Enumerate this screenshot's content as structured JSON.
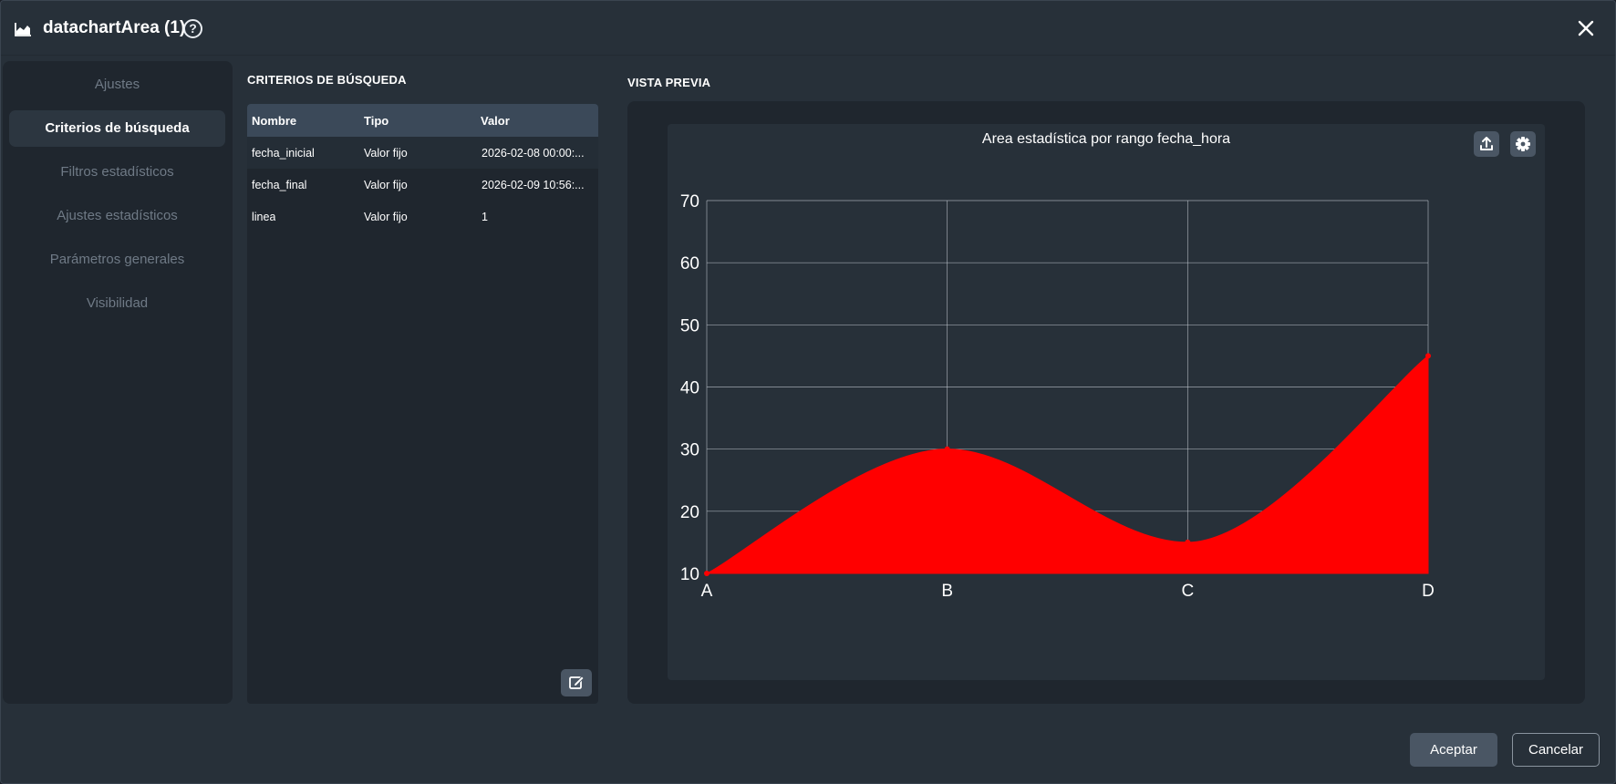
{
  "dialog": {
    "title": "datachartArea (1)",
    "help_symbol": "?"
  },
  "sidebar": {
    "items": [
      {
        "label": "Ajustes",
        "active": false
      },
      {
        "label": "Criterios de búsqueda",
        "active": true
      },
      {
        "label": "Filtros estadísticos",
        "active": false
      },
      {
        "label": "Ajustes estadísticos",
        "active": false
      },
      {
        "label": "Parámetros generales",
        "active": false
      },
      {
        "label": "Visibilidad",
        "active": false
      }
    ]
  },
  "criteria": {
    "title": "CRITERIOS DE BÚSQUEDA",
    "columns": [
      "Nombre",
      "Tipo",
      "Valor"
    ],
    "rows": [
      {
        "nombre": "fecha_inicial",
        "tipo": "Valor fijo",
        "valor": "2026-02-08 00:00:..."
      },
      {
        "nombre": "fecha_final",
        "tipo": "Valor fijo",
        "valor": "2026-02-09 10:56:..."
      },
      {
        "nombre": "linea",
        "tipo": "Valor fijo",
        "valor": "1"
      }
    ]
  },
  "preview": {
    "title": "VISTA PREVIA"
  },
  "chart_data": {
    "type": "area",
    "title": "Area estadística por rango fecha_hora",
    "categories": [
      "A",
      "B",
      "C",
      "D"
    ],
    "series": [
      {
        "values": [
          10,
          30,
          15,
          45
        ],
        "color": "#ff0000"
      }
    ],
    "ylim": [
      10,
      70
    ],
    "yticks": [
      10,
      20,
      30,
      40,
      50,
      60,
      70
    ],
    "grid": true,
    "smooth": true
  },
  "footer": {
    "accept_label": "Aceptar",
    "cancel_label": "Cancelar"
  }
}
